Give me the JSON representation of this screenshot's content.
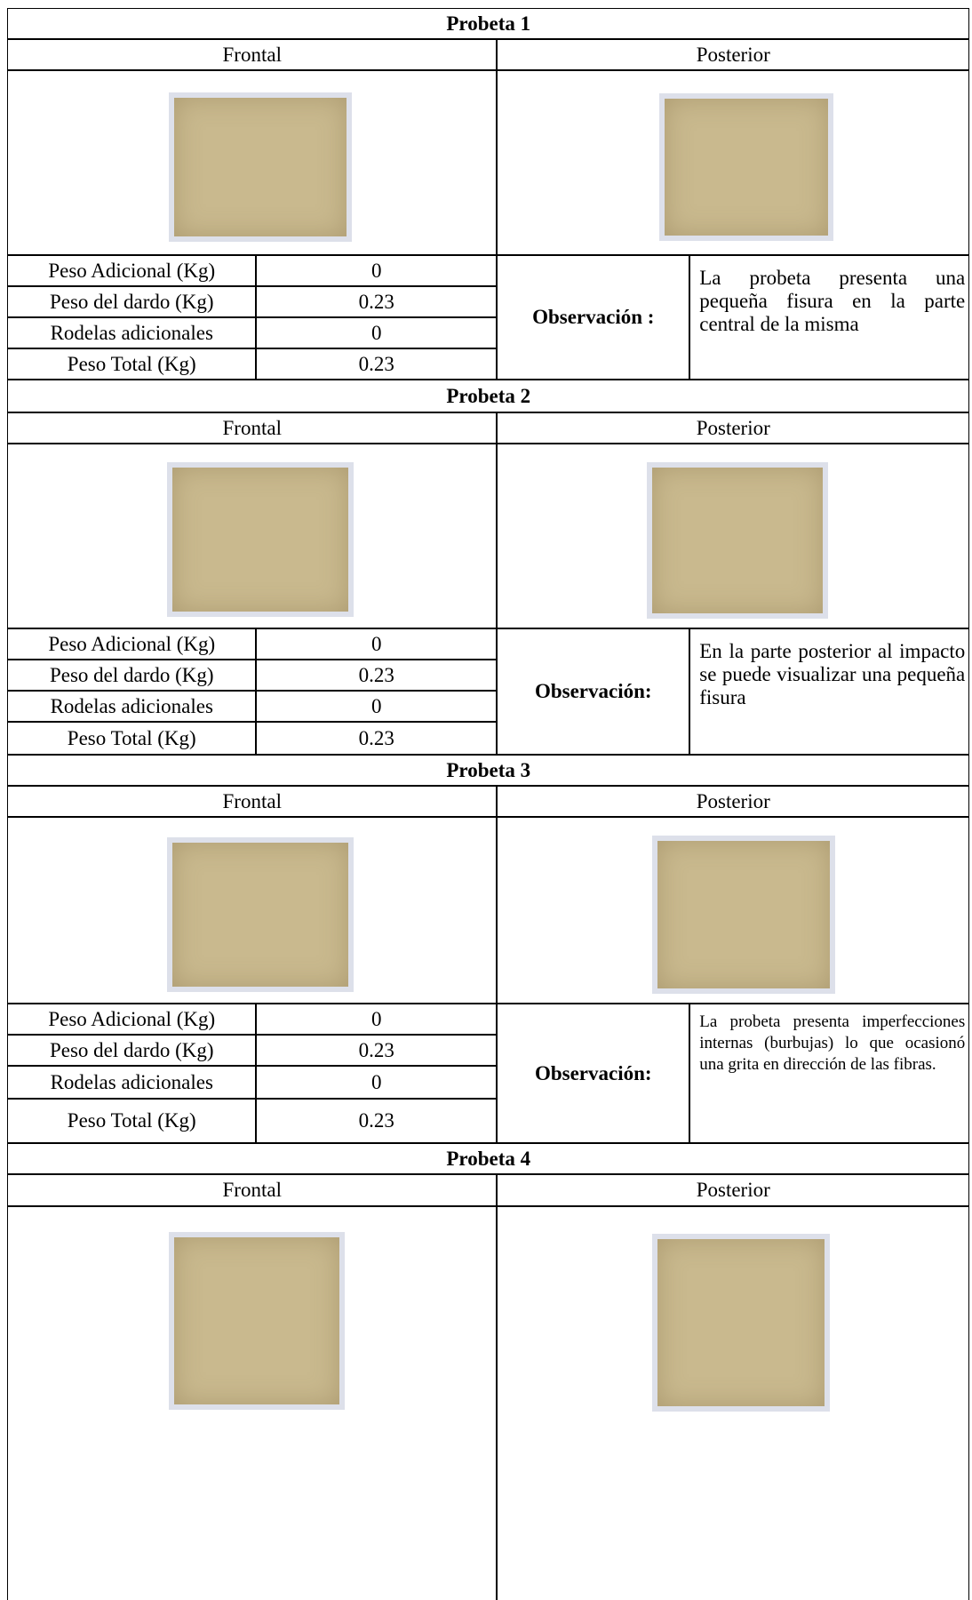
{
  "probetas": [
    {
      "title": "Probeta 1",
      "frontal": "Frontal",
      "posterior": "Posterior",
      "rows": [
        [
          "Peso Adicional (Kg)",
          "0"
        ],
        [
          "Peso del dardo (Kg)",
          "0.23"
        ],
        [
          "Rodelas adicionales",
          "0"
        ],
        [
          "Peso Total (Kg)",
          "0.23"
        ]
      ],
      "observation_label": "Observación :",
      "observation": "La probeta presenta una pequeña fisura  en la parte central de la misma"
    },
    {
      "title": "Probeta 2",
      "frontal": "Frontal",
      "posterior": "Posterior",
      "rows": [
        [
          "Peso Adicional (Kg)",
          "0"
        ],
        [
          "Peso del dardo (Kg)",
          "0.23"
        ],
        [
          "Rodelas adicionales",
          "0"
        ],
        [
          "Peso Total (Kg)",
          "0.23"
        ]
      ],
      "observation_label": "Observación:",
      "observation": "En la parte posterior al impacto se puede visualizar una pequeña fisura"
    },
    {
      "title": "Probeta 3",
      "frontal": "Frontal",
      "posterior": "Posterior",
      "rows": [
        [
          "Peso Adicional (Kg)",
          "0"
        ],
        [
          "Peso del dardo (Kg)",
          "0.23"
        ],
        [
          "Rodelas adicionales",
          "0"
        ],
        [
          "Peso Total (Kg)",
          "0.23"
        ]
      ],
      "observation_label": "Observación:",
      "observation": "La probeta presenta imperfecciones internas (burbujas) lo que ocasionó una grita en dirección de las fibras."
    },
    {
      "title": "Probeta 4",
      "frontal": "Frontal",
      "posterior": "Posterior"
    }
  ]
}
